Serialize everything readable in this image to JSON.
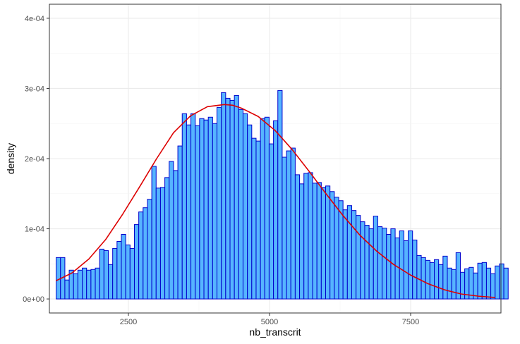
{
  "chart_data": {
    "type": "bar",
    "subtype": "histogram-with-density-curve",
    "xlabel": "nb_transcrit",
    "ylabel": "density",
    "xlim": [
      1100,
      9100
    ],
    "ylim": [
      -2e-05,
      0.00042
    ],
    "x_ticks": [
      2500,
      5000,
      7500
    ],
    "x_tick_labels": [
      "2500",
      "5000",
      "7500"
    ],
    "y_ticks": [
      0,
      0.0001,
      0.0002,
      0.0003,
      0.0004
    ],
    "y_tick_labels": [
      "0e+00",
      "1e-04",
      "2e-04",
      "3e-04",
      "4e-04"
    ],
    "grid": true,
    "bin_start": 1220,
    "bin_width": 77,
    "bar_fill": "#56B4FF",
    "bar_stroke": "#0000CC",
    "curve_color": "#DD0000",
    "values": [
      5.9e-05,
      5.9e-05,
      2.7e-05,
      4.1e-05,
      3.6e-05,
      4.1e-05,
      4.4e-05,
      4.1e-05,
      4.2e-05,
      4.4e-05,
      7.1e-05,
      6.9e-05,
      4.9e-05,
      7.2e-05,
      8.2e-05,
      9.2e-05,
      7.7e-05,
      7.2e-05,
      0.000106,
      0.000124,
      0.00013,
      0.000142,
      0.000189,
      0.000158,
      0.000159,
      0.000173,
      0.000196,
      0.000183,
      0.000218,
      0.000264,
      0.000248,
      0.000264,
      0.000247,
      0.000257,
      0.000255,
      0.000259,
      0.00025,
      0.000273,
      0.000294,
      0.000286,
      0.000283,
      0.00029,
      0.00027,
      0.000264,
      0.000248,
      0.000229,
      0.000225,
      0.000257,
      0.000259,
      0.000221,
      0.000254,
      0.000297,
      0.000202,
      0.000211,
      0.000215,
      0.000177,
      0.000164,
      0.000179,
      0.00018,
      0.000165,
      0.000166,
      0.000159,
      0.000161,
      0.000153,
      0.000145,
      0.00014,
      0.000127,
      0.000133,
      0.000126,
      0.000119,
      0.00011,
      0.000105,
      0.0001,
      0.000118,
      0.000103,
      0.000101,
      9.2e-05,
      0.0001,
      8.7e-05,
      9.7e-05,
      8.3e-05,
      9.7e-05,
      8.4e-05,
      6.2e-05,
      5.9e-05,
      5.5e-05,
      5.2e-05,
      5.6e-05,
      4.9e-05,
      6.1e-05,
      4.4e-05,
      4.2e-05,
      6.6e-05,
      3.8e-05,
      4.3e-05,
      4.5e-05,
      3.7e-05,
      5.1e-05,
      5.2e-05,
      4.4e-05,
      3.6e-05,
      4.7e-05,
      5e-05,
      4.4e-05
    ],
    "density_curve": {
      "x": [
        1220,
        1500,
        1800,
        2100,
        2400,
        2700,
        3000,
        3300,
        3600,
        3900,
        4200,
        4350,
        4500,
        4800,
        5100,
        5400,
        5700,
        6000,
        6300,
        6600,
        6900,
        7200,
        7500,
        7800,
        8100,
        8400,
        8700,
        9000
      ],
      "y": [
        2.6e-05,
        3.7e-05,
        5.7e-05,
        8.5e-05,
        0.000121,
        0.00016,
        0.0002,
        0.000237,
        0.000261,
        0.000274,
        0.000277,
        0.000276,
        0.000272,
        0.00026,
        0.00024,
        0.000213,
        0.000182,
        0.00015,
        0.000119,
        9.1e-05,
        6.8e-05,
        4.9e-05,
        3.4e-05,
        2.2e-05,
        1.3e-05,
        7e-06,
        4e-06,
        2e-06
      ]
    }
  }
}
